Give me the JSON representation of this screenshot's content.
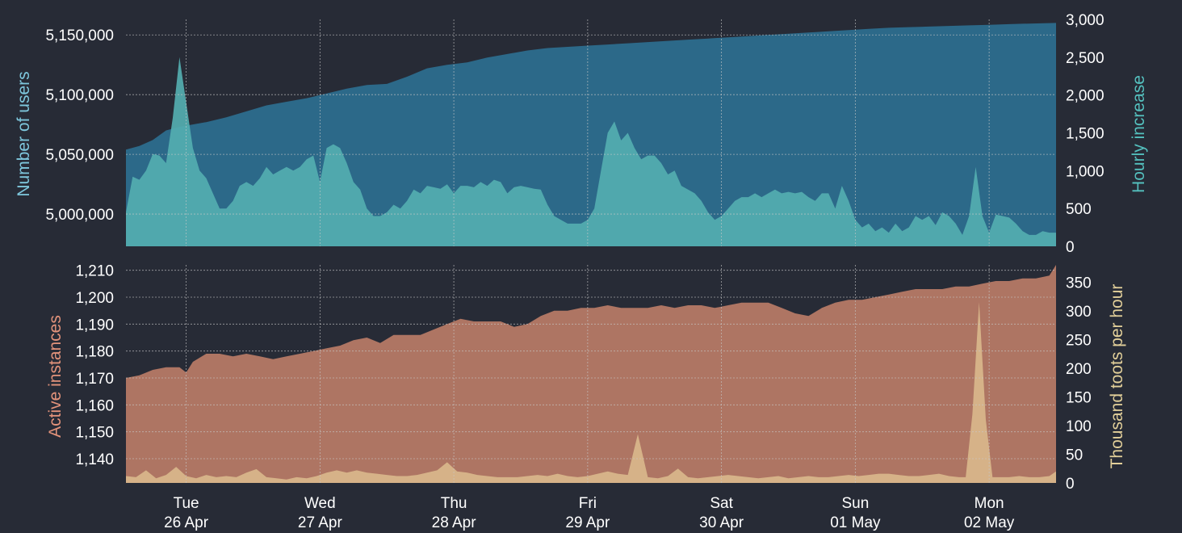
{
  "colors": {
    "background": "#272b36",
    "users_fill": "#2c6989",
    "hourly_fill": "#54aeb0",
    "instances_fill": "#ae7563",
    "toots_fill": "#d8b58a",
    "users_label": "#7ec7dd",
    "hourly_label": "#54c0be",
    "instances_label": "#e3937b",
    "toots_label": "#e3d09a"
  },
  "chart_data": [
    {
      "type": "area",
      "name": "users-panel",
      "ylabel": "Number of users",
      "y2label": "Hourly increase",
      "ylim": [
        4973000,
        5163000
      ],
      "y2lim": [
        0,
        3000
      ],
      "yticks": [
        5000000,
        5050000,
        5100000,
        5150000
      ],
      "ytick_labels": [
        "5,000,000",
        "5,050,000",
        "5,100,000",
        "5,150,000"
      ],
      "y2ticks": [
        0,
        500,
        1000,
        1500,
        2000,
        2500,
        3000
      ],
      "y2tick_labels": [
        "0",
        "500",
        "1,000",
        "1,500",
        "2,000",
        "2,500",
        "3,000"
      ],
      "grid": true,
      "x_unit": "hours since start of data",
      "series": [
        {
          "name": "Number of users",
          "axis": "left",
          "x": [
            0,
            4,
            8,
            12,
            16,
            20,
            24,
            30,
            36,
            42,
            48,
            54,
            60,
            66,
            72,
            78,
            84,
            90,
            96,
            102,
            108,
            114,
            120,
            126,
            132,
            138,
            144,
            150,
            156,
            162,
            168,
            174,
            180,
            186,
            192,
            198,
            204,
            210,
            216,
            222,
            228,
            234,
            240,
            246,
            252,
            258,
            264,
            270,
            278
          ],
          "values": [
            5054000,
            5057000,
            5062000,
            5070000,
            5073000,
            5075000,
            5077000,
            5081000,
            5086000,
            5091000,
            5094000,
            5097000,
            5101000,
            5105000,
            5108000,
            5109000,
            5115000,
            5122000,
            5125000,
            5127000,
            5131000,
            5134000,
            5137000,
            5139000,
            5140000,
            5141000,
            5142000,
            5143000,
            5144000,
            5145000,
            5146000,
            5147000,
            5148000,
            5149000,
            5150000,
            5151000,
            5152000,
            5153000,
            5154000,
            5155000,
            5156000,
            5156500,
            5157000,
            5157500,
            5158000,
            5158500,
            5159000,
            5159500,
            5160000
          ]
        },
        {
          "name": "Hourly increase",
          "axis": "right",
          "x": [
            0,
            2,
            4,
            6,
            8,
            10,
            12,
            14,
            16,
            18,
            20,
            22,
            24,
            26,
            28,
            30,
            32,
            34,
            36,
            38,
            40,
            42,
            44,
            46,
            48,
            50,
            52,
            54,
            56,
            58,
            60,
            62,
            64,
            66,
            68,
            70,
            72,
            74,
            76,
            78,
            80,
            82,
            84,
            86,
            88,
            90,
            92,
            94,
            96,
            98,
            100,
            102,
            104,
            106,
            108,
            110,
            112,
            114,
            116,
            118,
            120,
            122,
            124,
            126,
            128,
            130,
            132,
            134,
            136,
            138,
            140,
            142,
            144,
            146,
            148,
            150,
            152,
            154,
            156,
            158,
            160,
            162,
            164,
            166,
            168,
            170,
            172,
            174,
            176,
            178,
            180,
            182,
            184,
            186,
            188,
            190,
            192,
            194,
            196,
            198,
            200,
            202,
            204,
            206,
            208,
            210,
            212,
            214,
            216,
            218,
            220,
            222,
            224,
            226,
            228,
            230,
            232,
            234,
            236,
            238,
            240,
            242,
            244,
            246,
            248,
            250,
            252,
            254,
            256,
            258,
            260,
            262,
            264,
            266,
            268,
            270,
            272,
            274,
            276,
            278
          ],
          "values": [
            450,
            920,
            880,
            1000,
            1220,
            1200,
            1100,
            1700,
            2500,
            1900,
            1300,
            1000,
            900,
            700,
            500,
            500,
            600,
            800,
            850,
            800,
            900,
            1050,
            950,
            1000,
            1050,
            1000,
            1050,
            1150,
            1200,
            850,
            1300,
            1350,
            1300,
            1100,
            850,
            750,
            500,
            400,
            400,
            450,
            550,
            500,
            600,
            750,
            700,
            800,
            780,
            760,
            820,
            700,
            800,
            800,
            780,
            850,
            800,
            880,
            850,
            700,
            780,
            800,
            780,
            760,
            750,
            550,
            400,
            350,
            300,
            300,
            300,
            350,
            500,
            1000,
            1500,
            1650,
            1400,
            1500,
            1300,
            1150,
            1200,
            1200,
            1100,
            950,
            1000,
            800,
            750,
            700,
            600,
            450,
            350,
            400,
            500,
            600,
            650,
            650,
            700,
            650,
            700,
            750,
            700,
            720,
            700,
            720,
            650,
            600,
            700,
            700,
            500,
            800,
            600,
            350,
            250,
            300,
            200,
            250,
            180,
            300,
            200,
            250,
            400,
            350,
            400,
            280,
            450,
            400,
            300,
            350,
            500,
            450,
            400,
            420,
            420,
            400,
            380,
            300,
            200,
            150,
            150,
            200,
            180,
            180
          ],
          "note_end": "spike near Mon to 1,050"
        }
      ]
    },
    {
      "type": "area",
      "name": "instances-panel",
      "ylabel": "Active instances",
      "y2label": "Thousand toots per hour",
      "ylim": [
        1131,
        1212
      ],
      "y2lim": [
        0,
        380
      ],
      "yticks": [
        1140,
        1150,
        1160,
        1170,
        1180,
        1190,
        1200,
        1210
      ],
      "ytick_labels": [
        "1,140",
        "1,150",
        "1,160",
        "1,170",
        "1,180",
        "1,190",
        "1,200",
        "1,210"
      ],
      "y2ticks": [
        0,
        50,
        100,
        150,
        200,
        250,
        300,
        350
      ],
      "y2tick_labels": [
        "0",
        "50",
        "100",
        "150",
        "200",
        "250",
        "300",
        "350"
      ],
      "grid": true,
      "series": [
        {
          "name": "Active instances",
          "axis": "left",
          "x": [
            0,
            4,
            8,
            12,
            16,
            18,
            20,
            24,
            28,
            32,
            36,
            40,
            44,
            48,
            52,
            56,
            60,
            64,
            68,
            72,
            76,
            80,
            84,
            88,
            92,
            96,
            100,
            104,
            108,
            112,
            116,
            120,
            124,
            128,
            132,
            136,
            140,
            144,
            148,
            152,
            156,
            160,
            164,
            168,
            172,
            176,
            180,
            184,
            188,
            192,
            196,
            200,
            204,
            208,
            212,
            216,
            220,
            224,
            228,
            232,
            236,
            240,
            244,
            248,
            252,
            256,
            260,
            264,
            268,
            272,
            276,
            278
          ],
          "values": [
            1170,
            1171,
            1173,
            1174,
            1174,
            1172,
            1176,
            1179,
            1179,
            1178,
            1179,
            1178,
            1177,
            1178,
            1179,
            1180,
            1181,
            1182,
            1184,
            1185,
            1183,
            1186,
            1186,
            1186,
            1188,
            1190,
            1192,
            1191,
            1191,
            1191,
            1189,
            1190,
            1193,
            1195,
            1195,
            1196,
            1196,
            1197,
            1196,
            1196,
            1196,
            1197,
            1196,
            1197,
            1197,
            1196,
            1197,
            1198,
            1198,
            1198,
            1196,
            1194,
            1193,
            1196,
            1198,
            1199,
            1199,
            1200,
            1201,
            1202,
            1203,
            1203,
            1203,
            1204,
            1204,
            1205,
            1206,
            1206,
            1207,
            1207,
            1208,
            1212
          ]
        },
        {
          "name": "Thousand toots per hour",
          "axis": "right",
          "x": [
            0,
            3,
            6,
            9,
            12,
            15,
            18,
            21,
            24,
            27,
            30,
            33,
            36,
            39,
            42,
            45,
            48,
            51,
            54,
            57,
            60,
            63,
            66,
            69,
            72,
            75,
            78,
            81,
            84,
            87,
            90,
            93,
            96,
            99,
            102,
            105,
            108,
            111,
            114,
            117,
            120,
            123,
            126,
            129,
            132,
            135,
            138,
            141,
            144,
            147,
            150,
            153,
            156,
            159,
            162,
            165,
            168,
            171,
            174,
            177,
            180,
            183,
            186,
            189,
            192,
            195,
            198,
            201,
            204,
            207,
            210,
            213,
            216,
            219,
            222,
            225,
            228,
            231,
            234,
            237,
            240,
            243,
            246,
            249,
            252,
            255,
            258,
            261,
            264,
            267,
            270,
            273,
            276,
            278
          ],
          "values": [
            12,
            10,
            22,
            8,
            14,
            28,
            12,
            8,
            14,
            10,
            12,
            10,
            18,
            24,
            10,
            8,
            6,
            10,
            8,
            12,
            18,
            22,
            18,
            22,
            18,
            16,
            14,
            12,
            12,
            14,
            18,
            22,
            36,
            20,
            18,
            14,
            12,
            10,
            10,
            10,
            12,
            14,
            12,
            16,
            12,
            10,
            12,
            16,
            20,
            16,
            14,
            85,
            10,
            8,
            12,
            25,
            10,
            8,
            10,
            12,
            14,
            12,
            10,
            8,
            10,
            12,
            8,
            10,
            12,
            10,
            10,
            12,
            14,
            12,
            14,
            16,
            16,
            14,
            12,
            12,
            14,
            16,
            12,
            10,
            8,
            10,
            12,
            10,
            10,
            12,
            10,
            10,
            12,
            20
          ],
          "note_end": "spike near Mon to 315"
        }
      ]
    }
  ],
  "x_axis": {
    "ticks": [
      {
        "hour": 18,
        "day": "Tue",
        "date": "26 Apr"
      },
      {
        "hour": 58,
        "day": "Wed",
        "date": "27 Apr"
      },
      {
        "hour": 98,
        "day": "Thu",
        "date": "28 Apr"
      },
      {
        "hour": 138,
        "day": "Fri",
        "date": "29 Apr"
      },
      {
        "hour": 178,
        "day": "Sat",
        "date": "30 Apr"
      },
      {
        "hour": 218,
        "day": "Sun",
        "date": "01 May"
      },
      {
        "hour": 258,
        "day": "Mon",
        "date": "02 May"
      }
    ],
    "xlim": [
      0,
      278
    ]
  }
}
